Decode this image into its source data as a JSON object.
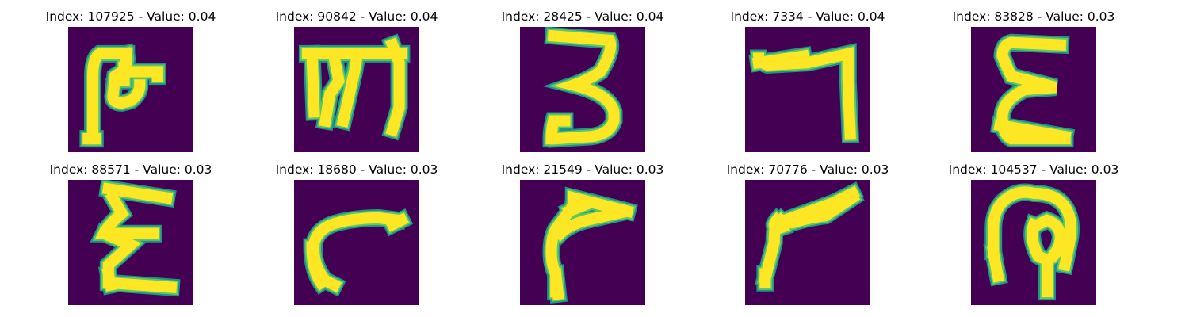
{
  "colors": {
    "background": "#440154",
    "edge": "#21918c",
    "mid": "#5ec962",
    "stroke": "#fde725"
  },
  "panels": [
    {
      "title": "Index: 107925 - Value: 0.04",
      "glyph": "hooked-bar"
    },
    {
      "title": "Index: 90842 - Value: 0.04",
      "glyph": "trident"
    },
    {
      "title": "Index: 28425 - Value: 0.04",
      "glyph": "digit-3"
    },
    {
      "title": "Index: 7334 - Value: 0.04",
      "glyph": "digit-7"
    },
    {
      "title": "Index: 83828 - Value: 0.03",
      "glyph": "epsilon"
    },
    {
      "title": "Index: 88571 - Value: 0.03",
      "glyph": "sigma"
    },
    {
      "title": "Index: 18680 - Value: 0.03",
      "glyph": "hook-arc"
    },
    {
      "title": "Index: 21549 - Value: 0.03",
      "glyph": "bent-stroke"
    },
    {
      "title": "Index: 70776 - Value: 0.03",
      "glyph": "v-angle"
    },
    {
      "title": "Index: 104537 - Value: 0.03",
      "glyph": "loop"
    }
  ]
}
